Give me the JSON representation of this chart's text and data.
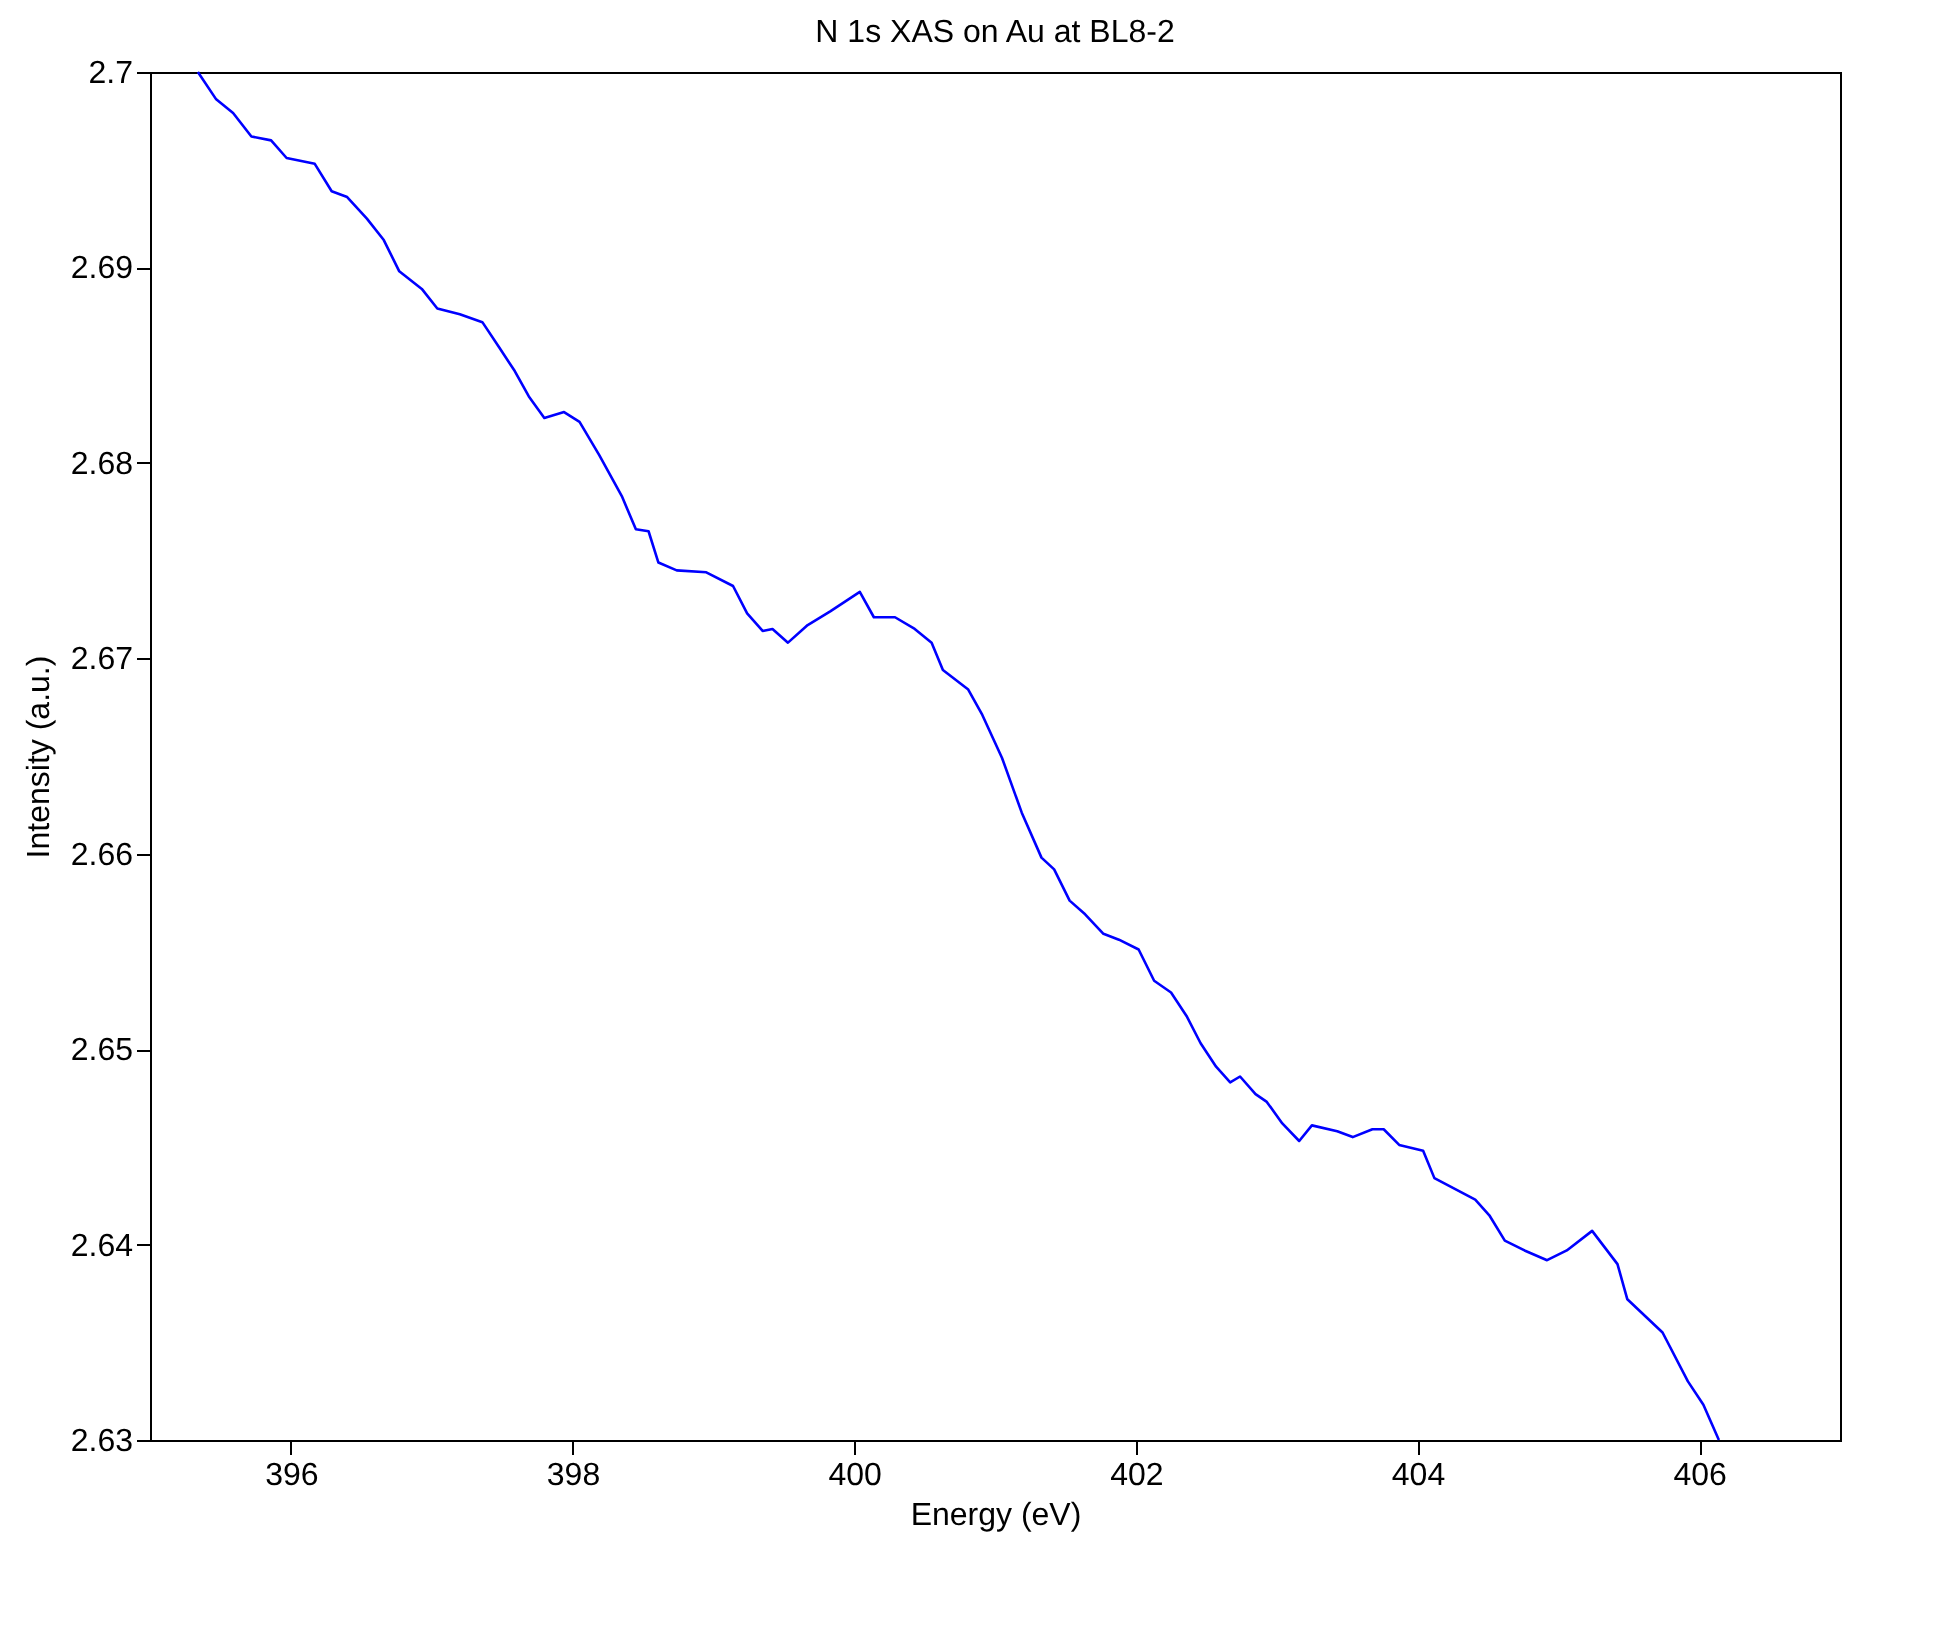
{
  "chart_data": {
    "type": "line",
    "title": "N 1s XAS on Au at BL8-2",
    "xlabel": "Energy (eV)",
    "ylabel": "Intensity (a.u.)",
    "xlim": [
      395,
      407
    ],
    "xticks": [
      396,
      398,
      400,
      402,
      404,
      406
    ],
    "ylim": [
      2.63,
      2.7
    ],
    "yticks": [
      2.63,
      2.64,
      2.65,
      2.66,
      2.67,
      2.68,
      2.69,
      2.7
    ],
    "grid": false,
    "line_style": "solid",
    "marker": "none",
    "series": [
      {
        "color": "#0000ff",
        "x": [
          395.34,
          395.47,
          395.59,
          395.72,
          395.86,
          395.97,
          396.17,
          396.29,
          396.4,
          396.54,
          396.66,
          396.77,
          396.93,
          397.04,
          397.2,
          397.36,
          397.48,
          397.59,
          397.69,
          397.8,
          397.94,
          398.05,
          398.19,
          398.35,
          398.45,
          398.54,
          398.61,
          398.74,
          398.95,
          399.14,
          399.24,
          399.35,
          399.42,
          399.53,
          399.67,
          399.83,
          400.04,
          400.14,
          400.29,
          400.43,
          400.55,
          400.63,
          400.81,
          400.91,
          401.05,
          401.19,
          401.33,
          401.42,
          401.53,
          401.64,
          401.77,
          401.88,
          402.02,
          402.13,
          402.25,
          402.36,
          402.46,
          402.57,
          402.67,
          402.74,
          402.85,
          402.93,
          403.04,
          403.16,
          403.25,
          403.43,
          403.54,
          403.68,
          403.76,
          403.87,
          404.04,
          404.12,
          404.41,
          404.51,
          404.62,
          404.76,
          404.92,
          405.06,
          405.24,
          405.42,
          405.49,
          405.74,
          405.92,
          406.03,
          406.14
        ],
        "values": [
          2.7,
          2.6986,
          2.6979,
          2.6967,
          2.6965,
          2.6956,
          2.6953,
          2.6939,
          2.6936,
          2.6925,
          2.6914,
          2.6898,
          2.6889,
          2.6879,
          2.6876,
          2.6872,
          2.6859,
          2.6847,
          2.6834,
          2.6823,
          2.6826,
          2.6821,
          2.6804,
          2.6783,
          2.6766,
          2.6765,
          2.6749,
          2.6745,
          2.6744,
          2.6737,
          2.6723,
          2.6714,
          2.6715,
          2.6708,
          2.6717,
          2.6724,
          2.6734,
          2.6721,
          2.6721,
          2.6715,
          2.6708,
          2.6694,
          2.6684,
          2.6671,
          2.6649,
          2.6621,
          2.6598,
          2.6592,
          2.6576,
          2.6569,
          2.6559,
          2.6556,
          2.6551,
          2.6535,
          2.6529,
          2.6517,
          2.6503,
          2.6491,
          2.6483,
          2.6486,
          2.6477,
          2.6473,
          2.6462,
          2.6453,
          2.6461,
          2.6458,
          2.6455,
          2.6459,
          2.6459,
          2.6451,
          2.6448,
          2.6434,
          2.6423,
          2.6415,
          2.6402,
          2.6397,
          2.6392,
          2.6397,
          2.6407,
          2.639,
          2.6372,
          2.6355,
          2.633,
          2.6318,
          2.63
        ]
      }
    ]
  }
}
